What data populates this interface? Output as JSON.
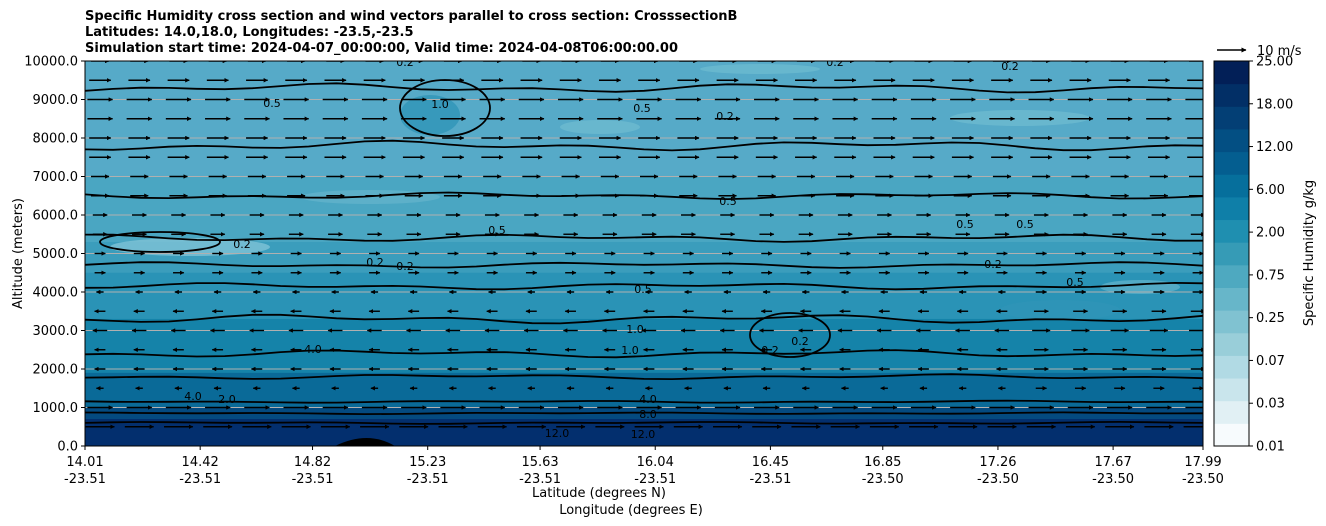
{
  "chart_data": {
    "type": "heatmap",
    "title": "Specific Humidity cross section and wind vectors parallel to cross section: CrosssectionB",
    "subtitle_lines": [
      "Latitudes: 14.0,18.0, Longitudes: -23.5,-23.5",
      "Simulation start time: 2024-04-07_00:00:00, Valid time: 2024-04-08T06:00:00.00"
    ],
    "ylabel": "Altitude (meters)",
    "xlabel_lines": [
      "Latitude (degrees N)",
      "Longitude (degrees E)"
    ],
    "ylim": [
      0,
      10000
    ],
    "y_ticks": [
      "0.0",
      "1000.0",
      "2000.0",
      "3000.0",
      "4000.0",
      "5000.0",
      "6000.0",
      "7000.0",
      "8000.0",
      "9000.0",
      "10000.0"
    ],
    "x_ticks": [
      {
        "lat": "14.01",
        "lon": "-23.51"
      },
      {
        "lat": "14.42",
        "lon": "-23.51"
      },
      {
        "lat": "14.82",
        "lon": "-23.51"
      },
      {
        "lat": "15.23",
        "lon": "-23.51"
      },
      {
        "lat": "15.63",
        "lon": "-23.51"
      },
      {
        "lat": "16.04",
        "lon": "-23.51"
      },
      {
        "lat": "16.45",
        "lon": "-23.51"
      },
      {
        "lat": "16.85",
        "lon": "-23.50"
      },
      {
        "lat": "17.26",
        "lon": "-23.50"
      },
      {
        "lat": "17.67",
        "lon": "-23.50"
      },
      {
        "lat": "17.99",
        "lon": "-23.50"
      }
    ],
    "colorbar": {
      "label": "Specific Humidity g/kg",
      "ticks": [
        "0.01",
        "0.03",
        "0.07",
        "0.25",
        "0.75",
        "2.00",
        "6.00",
        "12.00",
        "18.00",
        "25.00"
      ],
      "colors": [
        "#f7fbfd",
        "#e1f0f4",
        "#c9e5ec",
        "#b1dae4",
        "#99ced9",
        "#80c2d1",
        "#67b6c9",
        "#4ea9c0",
        "#369bb6",
        "#1f8fb0",
        "#0f7fa8",
        "#066f9c",
        "#045e90",
        "#034f83",
        "#033f75",
        "#022f66",
        "#021f57"
      ]
    },
    "humidity_layers": [
      {
        "top": 700,
        "value": "12.00",
        "color": "#032f6e"
      },
      {
        "top": 1000,
        "value": "8.00",
        "color": "#044a80"
      },
      {
        "top": 1900,
        "value": "4.00",
        "color": "#0a6a98"
      },
      {
        "top": 3300,
        "value": "2.00",
        "color": "#1583a9"
      },
      {
        "top": 4500,
        "value": "1.00",
        "color": "#2a93b6"
      },
      {
        "top": 5300,
        "value": "0.50",
        "color": "#3b9dbc"
      },
      {
        "top": 7000,
        "value": "0.25",
        "color": "#4aa6c2"
      },
      {
        "top": 10000,
        "value": "0.20",
        "color": "#56aac8"
      }
    ],
    "contour_labels": [
      "0.2",
      "0.5",
      "1.0",
      "2.0",
      "4.0",
      "8.0",
      "12.0"
    ],
    "wind_reference": {
      "label": "10 m/s",
      "speed": 10
    },
    "wind_rows": [
      {
        "alt": 500,
        "u": 8
      },
      {
        "alt": 1000,
        "u": 7
      },
      {
        "alt": 1500,
        "u": -2
      },
      {
        "alt": 2000,
        "u": -3
      },
      {
        "alt": 2500,
        "u": -3
      },
      {
        "alt": 3000,
        "u": -4
      },
      {
        "alt": 3500,
        "u": -3
      },
      {
        "alt": 4000,
        "u": -2
      },
      {
        "alt": 4500,
        "u": 3
      },
      {
        "alt": 5000,
        "u": 3
      },
      {
        "alt": 5500,
        "u": 4
      },
      {
        "alt": 6000,
        "u": 4
      },
      {
        "alt": 6500,
        "u": 5
      },
      {
        "alt": 7000,
        "u": 5
      },
      {
        "alt": 7500,
        "u": 6
      },
      {
        "alt": 8000,
        "u": 6
      },
      {
        "alt": 8500,
        "u": 7
      },
      {
        "alt": 9000,
        "u": 7
      },
      {
        "alt": 9500,
        "u": 6
      },
      {
        "alt": 10000,
        "u": 5
      }
    ],
    "grid": true
  }
}
